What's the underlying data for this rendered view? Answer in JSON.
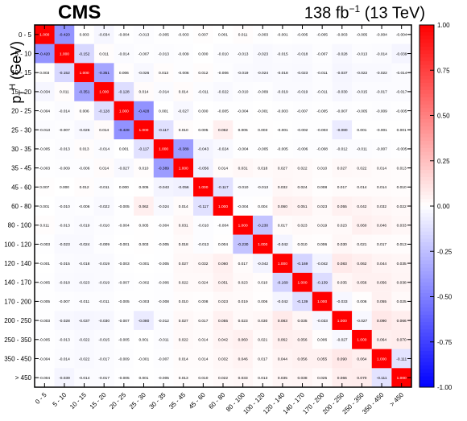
{
  "header": {
    "experiment": "CMS",
    "lumi_value": "138 fb",
    "lumi_exp": "−1",
    "energy": " (13 TeV)"
  },
  "axis_label": {
    "symbol": "p",
    "sub": "T",
    "sup": "H",
    "unit": " (GeV)"
  },
  "chart_data": {
    "type": "heatmap",
    "categories": [
      "0 - 5",
      "5 - 10",
      "10 - 15",
      "15 - 20",
      "20 - 25",
      "25 - 30",
      "30 - 35",
      "35 - 45",
      "45 - 60",
      "60 - 80",
      "80 - 100",
      "100 - 120",
      "120 - 140",
      "140 - 170",
      "170 - 200",
      "200 - 250",
      "250 - 350",
      "350 - 450",
      "> 450"
    ],
    "colorbar": {
      "range": [
        -1,
        1
      ],
      "ticks": [
        -1,
        -0.75,
        -0.5,
        -0.25,
        0,
        0.25,
        0.5,
        0.75,
        1
      ],
      "tick_labels": [
        "-1.00",
        "-0.75",
        "-0.50",
        "-0.25",
        "0.00",
        "0.25",
        "0.50",
        "0.75",
        "1.00"
      ]
    },
    "matrix": [
      [
        1.0,
        -0.42,
        0.003,
        -0.034,
        -0.004,
        -0.013,
        -0.005,
        -0.003,
        0.007,
        0.001,
        0.011,
        -0.003,
        -0.001,
        -0.005,
        -0.005,
        -0.003,
        -0.005,
        -0.004,
        -0.004
      ],
      [
        -0.42,
        1.0,
        -0.152,
        0.011,
        -0.014,
        -0.007,
        -0.013,
        -0.009,
        0.0,
        -0.01,
        -0.013,
        -0.023,
        -0.015,
        -0.018,
        -0.007,
        -0.028,
        -0.013,
        -0.014,
        -0.039
      ],
      [
        0.003,
        -0.152,
        1.0,
        -0.351,
        0.006,
        -0.026,
        0.013,
        -0.006,
        0.012,
        -0.006,
        -0.019,
        -0.024,
        -0.018,
        -0.023,
        -0.011,
        -0.037,
        -0.022,
        -0.022,
        -0.014
      ],
      [
        -0.034,
        0.011,
        -0.351,
        1.0,
        -0.128,
        0.014,
        -0.014,
        0.014,
        -0.011,
        -0.022,
        -0.01,
        -0.009,
        -0.019,
        -0.019,
        -0.011,
        -0.03,
        -0.015,
        -0.017,
        -0.017
      ],
      [
        -0.004,
        -0.014,
        0.006,
        -0.128,
        1.0,
        -0.428,
        0.001,
        -0.027,
        0.0,
        -0.005,
        -0.004,
        -0.001,
        -0.003,
        -0.007,
        -0.005,
        -0.007,
        -0.005,
        -0.009,
        -0.005
      ],
      [
        -0.013,
        -0.007,
        -0.026,
        0.014,
        -0.428,
        1.0,
        -0.117,
        0.01,
        0.005,
        0.062,
        0.005,
        0.003,
        -0.001,
        -0.002,
        -0.003,
        -0.08,
        0.001,
        -0.001,
        0.001
      ],
      [
        -0.005,
        -0.013,
        0.013,
        -0.014,
        0.001,
        -0.117,
        1.0,
        -0.389,
        -0.043,
        -0.024,
        -0.004,
        -0.005,
        -0.005,
        -0.006,
        -0.008,
        -0.012,
        -0.011,
        -0.007,
        -0.005
      ],
      [
        -0.003,
        -0.009,
        -0.006,
        0.014,
        -0.027,
        0.01,
        -0.389,
        1.0,
        -0.056,
        0.014,
        0.031,
        0.018,
        0.027,
        0.022,
        0.01,
        0.027,
        0.022,
        0.014,
        0.013
      ],
      [
        0.007,
        0.0,
        0.012,
        -0.011,
        0.0,
        0.005,
        -0.043,
        -0.056,
        1.0,
        -0.117,
        -0.01,
        -0.013,
        0.032,
        0.024,
        0.008,
        0.017,
        0.014,
        0.014,
        0.01
      ],
      [
        0.001,
        -0.01,
        -0.006,
        -0.022,
        -0.005,
        0.062,
        -0.024,
        0.014,
        -0.117,
        1.0,
        -0.004,
        0.004,
        0.06,
        0.051,
        0.023,
        0.055,
        0.042,
        0.032,
        0.022
      ],
      [
        0.011,
        -0.013,
        -0.019,
        -0.01,
        -0.004,
        0.005,
        -0.004,
        0.031,
        -0.01,
        -0.004,
        1.0,
        -0.23,
        0.017,
        0.023,
        0.019,
        0.023,
        0.06,
        0.046,
        0.033
      ],
      [
        -0.003,
        -0.023,
        -0.024,
        -0.009,
        -0.001,
        0.003,
        -0.005,
        0.018,
        -0.013,
        0.004,
        -0.23,
        1.0,
        -0.042,
        0.01,
        0.006,
        0.03,
        0.021,
        0.017,
        0.013
      ],
      [
        -0.001,
        -0.015,
        -0.018,
        -0.019,
        -0.003,
        -0.001,
        -0.005,
        0.027,
        0.032,
        0.06,
        0.017,
        -0.042,
        1.0,
        -0.169,
        -0.042,
        0.083,
        0.062,
        0.044,
        0.035
      ],
      [
        -0.005,
        -0.018,
        -0.023,
        -0.019,
        -0.007,
        -0.002,
        -0.006,
        0.022,
        0.024,
        0.051,
        0.023,
        0.01,
        -0.169,
        1.0,
        -0.139,
        0.035,
        0.056,
        0.056,
        0.038
      ],
      [
        -0.005,
        -0.007,
        -0.011,
        -0.011,
        -0.005,
        -0.003,
        -0.008,
        0.01,
        0.008,
        0.023,
        0.019,
        0.006,
        -0.042,
        -0.139,
        1.0,
        -0.033,
        0.006,
        0.055,
        0.025
      ],
      [
        -0.003,
        -0.028,
        -0.037,
        -0.03,
        -0.007,
        -0.08,
        -0.012,
        0.027,
        0.017,
        0.055,
        0.023,
        0.03,
        0.083,
        0.035,
        -0.033,
        1.0,
        -0.027,
        0.09,
        0.066
      ],
      [
        -0.005,
        -0.013,
        -0.022,
        -0.015,
        -0.005,
        0.001,
        -0.011,
        0.022,
        0.014,
        0.042,
        0.06,
        0.021,
        0.062,
        0.056,
        0.006,
        -0.027,
        1.0,
        0.064,
        0.07
      ],
      [
        -0.004,
        -0.014,
        -0.022,
        -0.017,
        -0.009,
        -0.001,
        -0.007,
        0.014,
        0.014,
        0.032,
        0.046,
        0.017,
        0.044,
        0.056,
        0.055,
        0.09,
        0.064,
        1.0,
        -0.111
      ],
      [
        -0.004,
        -0.039,
        -0.014,
        -0.017,
        -0.005,
        0.001,
        -0.005,
        0.013,
        0.01,
        0.022,
        0.033,
        0.013,
        0.035,
        0.038,
        0.025,
        0.066,
        0.07,
        -0.111,
        1.0
      ]
    ]
  }
}
